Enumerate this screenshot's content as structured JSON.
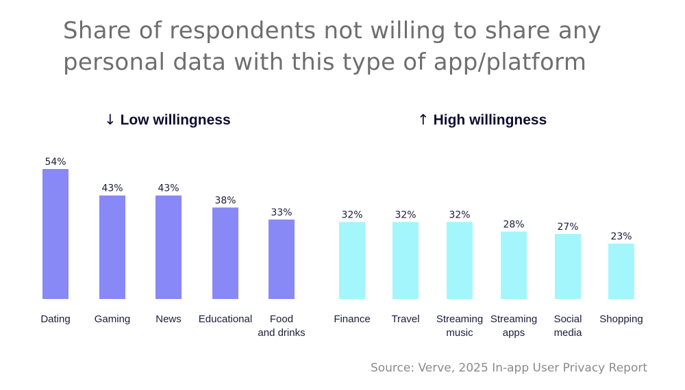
{
  "colors": {
    "low": "#8888f7",
    "high": "#a3f6fb",
    "label": "#1a1a3a",
    "title": "#6e6e6e"
  },
  "chart_data": {
    "type": "bar",
    "title": "Share of respondents not willing to share any personal data with this type of app/platform",
    "xlabel": "",
    "ylabel": "",
    "ylim": [
      0,
      54
    ],
    "grid": false,
    "groups": [
      {
        "name": "Low willingness",
        "arrow": "↓",
        "categories": [
          [
            "Dating"
          ],
          [
            "Gaming"
          ],
          [
            "News"
          ],
          [
            "Educational"
          ],
          [
            "Food",
            "and drinks"
          ]
        ],
        "values": [
          54,
          43,
          43,
          38,
          33
        ],
        "labels": [
          "54%",
          "43%",
          "43%",
          "38%",
          "33%"
        ]
      },
      {
        "name": "High willingness",
        "arrow": "↑",
        "categories": [
          [
            "Finance"
          ],
          [
            "Travel"
          ],
          [
            "Streaming",
            "music"
          ],
          [
            "Streaming",
            "apps"
          ],
          [
            "Social",
            "media"
          ],
          [
            "Shopping"
          ]
        ],
        "values": [
          32,
          32,
          32,
          28,
          27,
          23
        ],
        "labels": [
          "32%",
          "32%",
          "32%",
          "28%",
          "27%",
          "23%"
        ]
      }
    ],
    "source": "Source: Verve, 2025 In-app User Privacy Report"
  },
  "header": {
    "low_arrow": "↓",
    "low_label": "Low willingness",
    "high_arrow": "↑",
    "high_label": "High willingness"
  }
}
